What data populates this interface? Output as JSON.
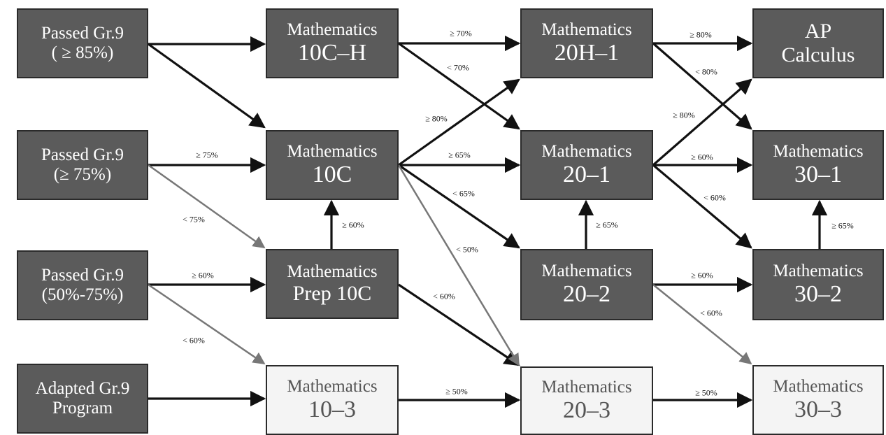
{
  "nodes": {
    "g9_85": {
      "line1": "Passed Gr.9",
      "line2": "( ≥ 85%)"
    },
    "g9_75": {
      "line1": "Passed Gr.9",
      "line2": "(≥ 75%)"
    },
    "g9_50": {
      "line1": "Passed Gr.9",
      "line2": "(50%-75%)"
    },
    "adapted": {
      "line1": "Adapted Gr.9",
      "line2": "Program"
    },
    "m10ch": {
      "line1": "Mathematics",
      "line2": "10C–H"
    },
    "m10c": {
      "line1": "Mathematics",
      "line2": "10C"
    },
    "prep10c": {
      "line1": "Mathematics",
      "line2": "Prep 10C"
    },
    "m103": {
      "line1": "Mathematics",
      "line2": "10–3"
    },
    "m20h1": {
      "line1": "Mathematics",
      "line2": "20H–1"
    },
    "m201": {
      "line1": "Mathematics",
      "line2": "20–1"
    },
    "m202": {
      "line1": "Mathematics",
      "line2": "20–2"
    },
    "m203": {
      "line1": "Mathematics",
      "line2": "20–3"
    },
    "ap": {
      "line1": "AP",
      "line2": "Calculus"
    },
    "m301": {
      "line1": "Mathematics",
      "line2": "30–1"
    },
    "m302": {
      "line1": "Mathematics",
      "line2": "30–2"
    },
    "m303": {
      "line1": "Mathematics",
      "line2": "30–3"
    }
  },
  "edges": [
    {
      "from": "g9_85",
      "to": "m10ch",
      "label": ""
    },
    {
      "from": "g9_85",
      "to": "m10c",
      "label": ""
    },
    {
      "from": "g9_75",
      "to": "m10c",
      "label": "≥ 75%"
    },
    {
      "from": "g9_75",
      "to": "prep10c",
      "label": "< 75%"
    },
    {
      "from": "g9_50",
      "to": "prep10c",
      "label": "≥ 60%"
    },
    {
      "from": "g9_50",
      "to": "m103",
      "label": "< 60%"
    },
    {
      "from": "adapted",
      "to": "m103",
      "label": ""
    },
    {
      "from": "prep10c",
      "to": "m10c",
      "label": "≥ 60%"
    },
    {
      "from": "prep10c",
      "to": "m203",
      "label": "< 60%"
    },
    {
      "from": "m10ch",
      "to": "m20h1",
      "label": "≥ 70%"
    },
    {
      "from": "m10ch",
      "to": "m201",
      "label": "< 70%"
    },
    {
      "from": "m10c",
      "to": "m20h1",
      "label": "≥ 80%"
    },
    {
      "from": "m10c",
      "to": "m201",
      "label": "≥ 65%"
    },
    {
      "from": "m10c",
      "to": "m202",
      "label": "< 65%"
    },
    {
      "from": "m10c",
      "to": "m203",
      "label": "< 50%"
    },
    {
      "from": "m103",
      "to": "m203",
      "label": "≥ 50%"
    },
    {
      "from": "m202",
      "to": "m201",
      "label": "≥ 65%"
    },
    {
      "from": "m20h1",
      "to": "ap",
      "label": "≥ 80%"
    },
    {
      "from": "m20h1",
      "to": "m301",
      "label": "< 80%"
    },
    {
      "from": "m201",
      "to": "ap",
      "label": "≥ 80%"
    },
    {
      "from": "m201",
      "to": "m301",
      "label": "≥ 60%"
    },
    {
      "from": "m201",
      "to": "m302",
      "label": "< 60%"
    },
    {
      "from": "m202",
      "to": "m302",
      "label": "≥ 60%"
    },
    {
      "from": "m202",
      "to": "m303",
      "label": "< 60%"
    },
    {
      "from": "m203",
      "to": "m303",
      "label": "≥ 50%"
    },
    {
      "from": "m302",
      "to": "m301",
      "label": "≥ 65%"
    }
  ],
  "colors": {
    "dark_box": "#5b5b5b",
    "light_box": "#f4f4f4",
    "arrow": "#111111",
    "arrow_gray": "#777777"
  }
}
